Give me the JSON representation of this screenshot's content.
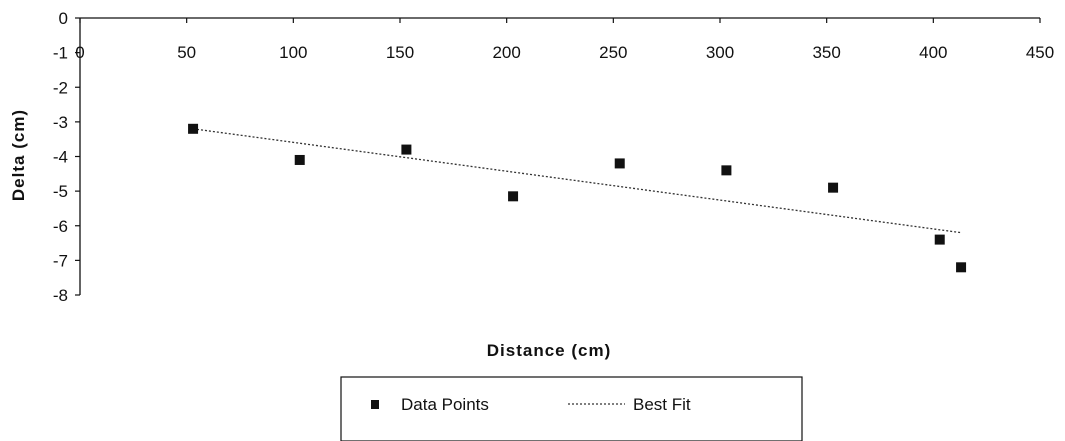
{
  "chart_data": {
    "type": "scatter",
    "xlabel": "Distance (cm)",
    "ylabel": "Delta (cm)",
    "xlim": [
      0,
      450
    ],
    "ylim": [
      -8,
      0
    ],
    "x_ticks": [
      "0",
      "50",
      "100",
      "150",
      "200",
      "250",
      "300",
      "350",
      "400",
      "450"
    ],
    "y_ticks": [
      "0",
      "-1",
      "-2",
      "-3",
      "-4",
      "-5",
      "-6",
      "-7",
      "-8"
    ],
    "grid": false,
    "legend_position": "bottom",
    "series": [
      {
        "name": "Data Points",
        "kind": "scatter",
        "marker": "square",
        "color": "#111111",
        "points": [
          {
            "x": 53,
            "y": -3.2
          },
          {
            "x": 103,
            "y": -4.1
          },
          {
            "x": 153,
            "y": -3.8
          },
          {
            "x": 203,
            "y": -5.15
          },
          {
            "x": 253,
            "y": -4.2
          },
          {
            "x": 303,
            "y": -4.4
          },
          {
            "x": 353,
            "y": -4.9
          },
          {
            "x": 403,
            "y": -6.4
          },
          {
            "x": 413,
            "y": -7.2
          }
        ]
      },
      {
        "name": "Best Fit",
        "kind": "line",
        "style": "dotted",
        "color": "#333333",
        "points": [
          {
            "x": 53,
            "y": -3.2
          },
          {
            "x": 413,
            "y": -6.2
          }
        ]
      }
    ]
  }
}
